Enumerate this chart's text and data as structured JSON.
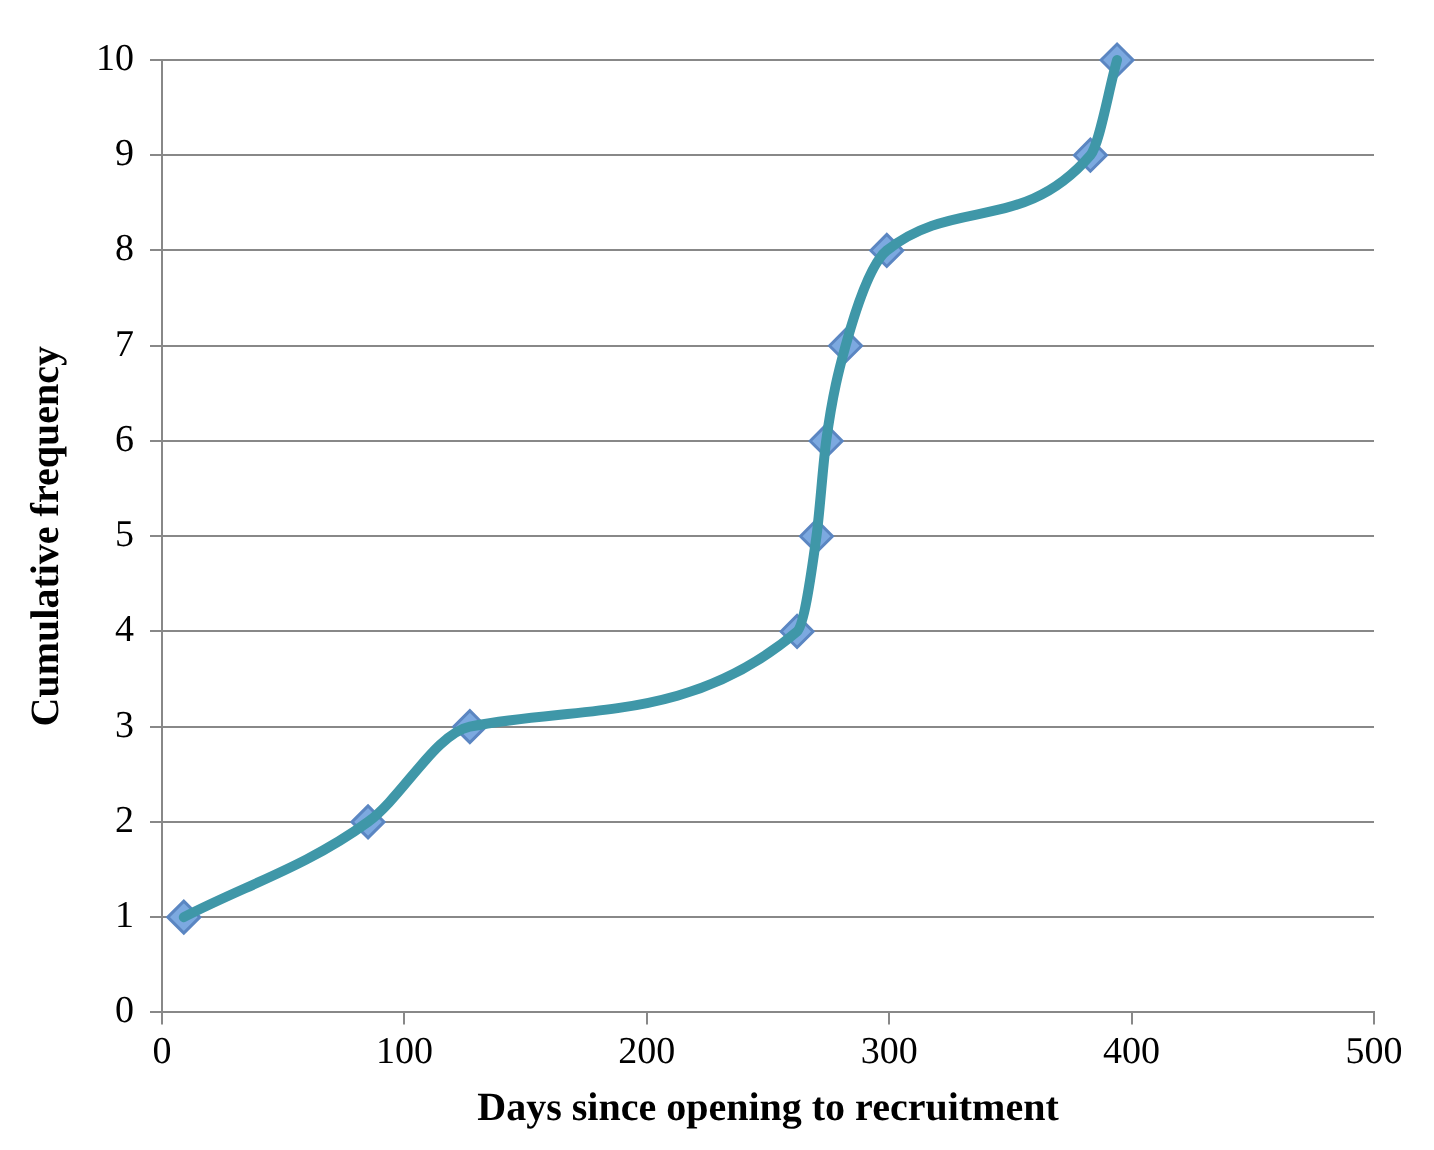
{
  "chart_data": {
    "type": "line",
    "xlabel": "Days since opening to recruitment",
    "ylabel": "Cumulative frequency",
    "x": [
      9,
      85,
      127,
      262,
      270,
      274,
      282,
      299,
      383,
      394
    ],
    "series": [
      {
        "color": "#3f97a8",
        "values": [
          1,
          2,
          3,
          4,
          5,
          6,
          7,
          8,
          9,
          10
        ]
      }
    ],
    "xlim": [
      0,
      500
    ],
    "xticks": [
      0,
      100,
      200,
      300,
      400,
      500
    ],
    "ylim": [
      0,
      10
    ],
    "yticks": [
      0,
      1,
      2,
      3,
      4,
      5,
      6,
      7,
      8,
      9,
      10
    ],
    "grid": "y",
    "legend": false,
    "marker": "diamond",
    "line_style": "solid"
  }
}
